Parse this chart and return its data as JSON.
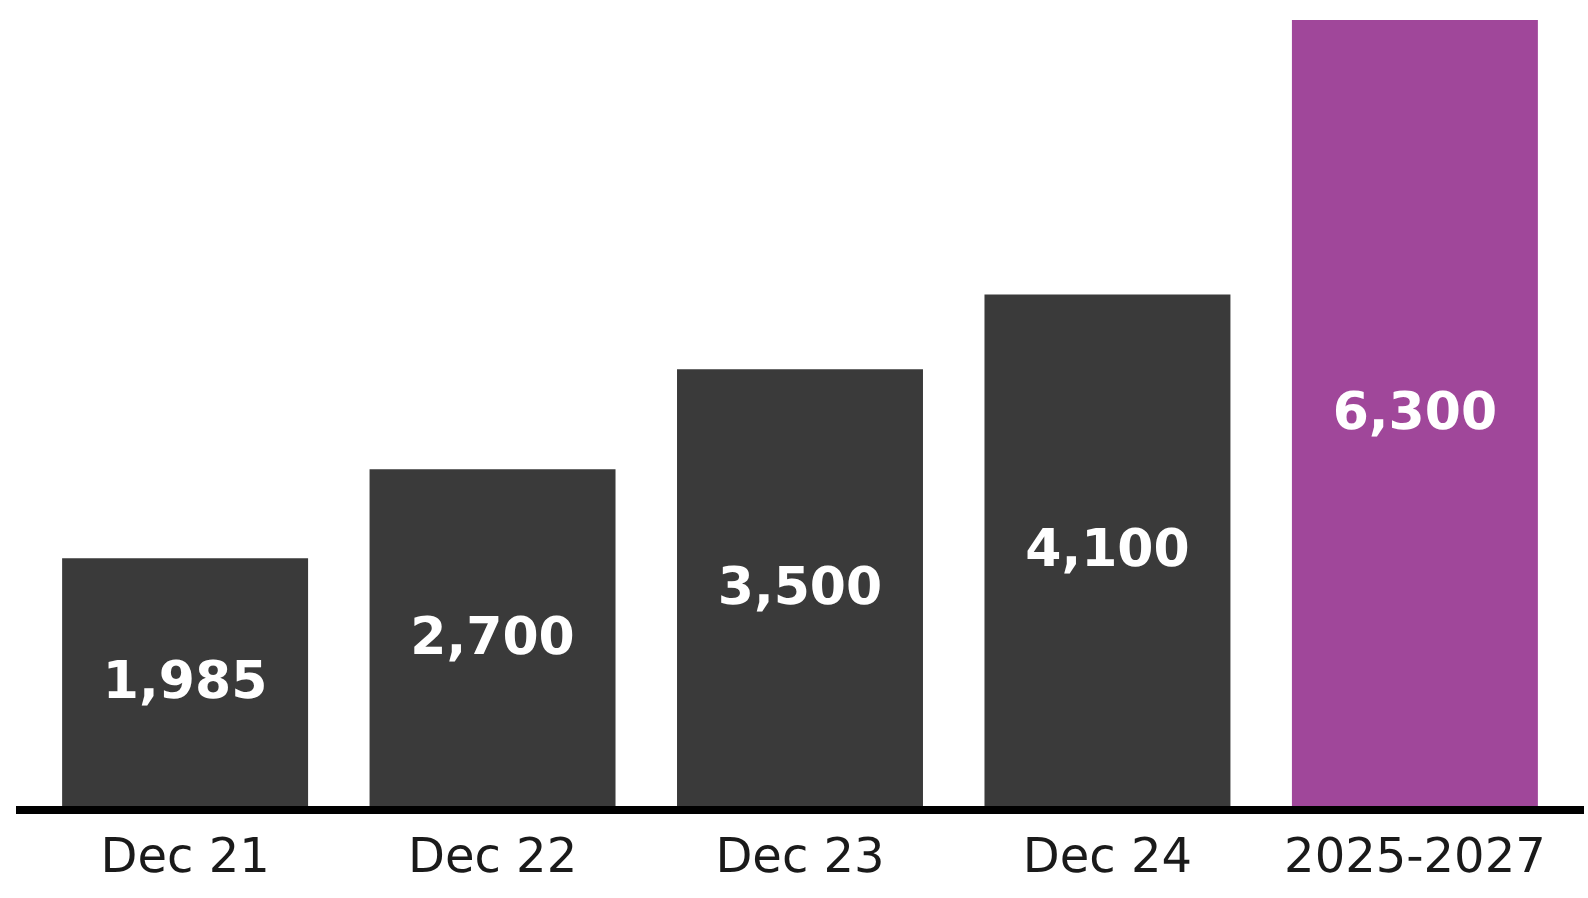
{
  "chart_data": {
    "type": "bar",
    "categories": [
      "Dec 21",
      "Dec 22",
      "Dec 23",
      "Dec 24",
      "2025-2027"
    ],
    "values": [
      1985,
      2700,
      3500,
      4100,
      6300
    ],
    "colors": [
      "#3a3a3a",
      "#3a3a3a",
      "#3a3a3a",
      "#3a3a3a",
      "#a0479a"
    ],
    "value_labels": [
      "1,985",
      "2,700",
      "3,500",
      "4,100",
      "6,300"
    ],
    "tick_labels": "x"
  }
}
